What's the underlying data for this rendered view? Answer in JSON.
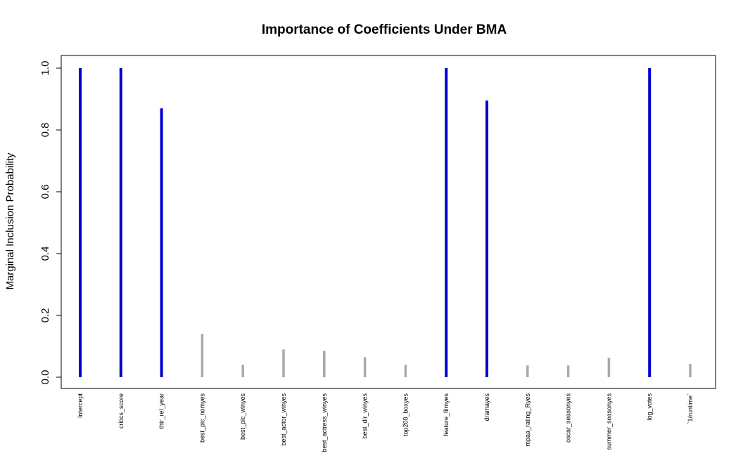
{
  "chart_data": {
    "type": "bar",
    "title": "Importance of Coefficients Under BMA",
    "xlabel": "",
    "ylabel": "Marginal Inclusion Probability",
    "ylim": [
      0,
      1
    ],
    "yticks": [
      "0.0",
      "0.2",
      "0.4",
      "0.6",
      "0.8",
      "1.0"
    ],
    "grid": false,
    "colors": {
      "high": "#0000cd",
      "low": "#a9a9a9"
    },
    "threshold": 0.5,
    "categories": [
      "Intercept",
      "critics_score",
      "thtr_rel_year",
      "best_pic_nomyes",
      "best_pic_winyes",
      "best_actor_winyes",
      "best_actress_winyes",
      "best_dir_winyes",
      "top200_boxyes",
      "feature_filmyes",
      "dramayes",
      "mpaa_rating_Ryes",
      "oscar_seasonyes",
      "summer_seasonyes",
      "log_votes",
      "`1/runtime`"
    ],
    "values": [
      1.0,
      1.0,
      0.87,
      0.14,
      0.04,
      0.09,
      0.085,
      0.065,
      0.04,
      1.0,
      0.895,
      0.038,
      0.038,
      0.063,
      1.0,
      0.043
    ]
  }
}
